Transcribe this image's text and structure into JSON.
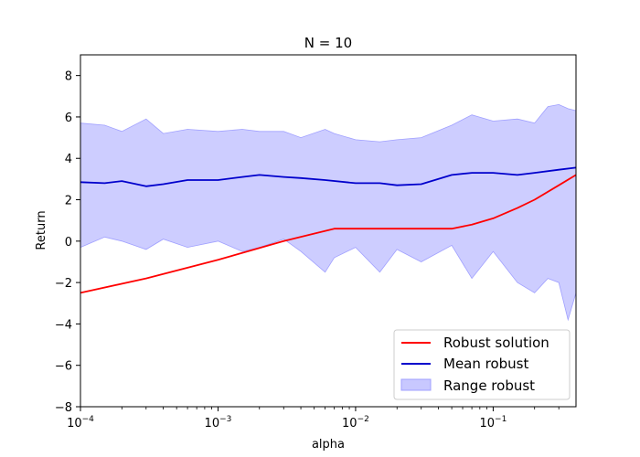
{
  "chart_data": {
    "type": "line",
    "title": "N = 10",
    "xlabel": "alpha",
    "ylabel": "Return",
    "x_scale": "log",
    "xlim": [
      0.0001,
      0.4
    ],
    "ylim": [
      -8,
      9
    ],
    "x_ticks": [
      {
        "value": 0.0001,
        "base": "10",
        "exp": "−4"
      },
      {
        "value": 0.001,
        "base": "10",
        "exp": "−3"
      },
      {
        "value": 0.01,
        "base": "10",
        "exp": "−2"
      },
      {
        "value": 0.1,
        "base": "10",
        "exp": "−1"
      }
    ],
    "y_ticks": [
      -8,
      -6,
      -4,
      -2,
      0,
      2,
      4,
      6,
      8
    ],
    "grid": false,
    "legend_position": "lower-right",
    "colors": {
      "robust_solution": "#ff0000",
      "mean_robust": "#0000cc",
      "range_fill": "#c8c8ff",
      "range_edge": "#a0a0ff"
    },
    "series": [
      {
        "name": "Robust solution",
        "kind": "line",
        "x": [
          0.0001,
          0.0003,
          0.001,
          0.003,
          0.007,
          0.02,
          0.05,
          0.07,
          0.1,
          0.15,
          0.2,
          0.3,
          0.4
        ],
        "y": [
          -2.5,
          -1.8,
          -0.9,
          0.0,
          0.6,
          0.6,
          0.6,
          0.8,
          1.1,
          1.6,
          2.0,
          2.7,
          3.2
        ]
      },
      {
        "name": "Mean robust",
        "kind": "line",
        "x": [
          0.0001,
          0.00015,
          0.0002,
          0.0003,
          0.0004,
          0.0006,
          0.001,
          0.0015,
          0.002,
          0.003,
          0.004,
          0.006,
          0.01,
          0.015,
          0.02,
          0.03,
          0.05,
          0.07,
          0.1,
          0.15,
          0.2,
          0.3,
          0.4
        ],
        "y": [
          2.85,
          2.8,
          2.9,
          2.65,
          2.75,
          2.95,
          2.95,
          3.1,
          3.2,
          3.1,
          3.05,
          2.95,
          2.8,
          2.8,
          2.7,
          2.75,
          3.2,
          3.3,
          3.3,
          3.2,
          3.3,
          3.45,
          3.55
        ]
      },
      {
        "name": "Range robust",
        "kind": "band",
        "x": [
          0.0001,
          0.00015,
          0.0002,
          0.0003,
          0.0004,
          0.0006,
          0.001,
          0.0015,
          0.002,
          0.003,
          0.004,
          0.006,
          0.007,
          0.01,
          0.015,
          0.02,
          0.03,
          0.05,
          0.07,
          0.1,
          0.15,
          0.2,
          0.25,
          0.3,
          0.35,
          0.4
        ],
        "upper": [
          5.7,
          5.6,
          5.3,
          5.9,
          5.2,
          5.4,
          5.3,
          5.4,
          5.3,
          5.3,
          5.0,
          5.4,
          5.2,
          4.9,
          4.8,
          4.9,
          5.0,
          5.6,
          6.1,
          5.8,
          5.9,
          5.7,
          6.5,
          6.6,
          6.4,
          6.3
        ],
        "lower": [
          -0.3,
          0.2,
          0.0,
          -0.4,
          0.1,
          -0.3,
          0.0,
          -0.5,
          -0.3,
          0.1,
          -0.5,
          -1.5,
          -0.8,
          -0.3,
          -1.5,
          -0.4,
          -1.0,
          -0.2,
          -1.8,
          -0.5,
          -2.0,
          -2.5,
          -1.8,
          -2.0,
          -3.8,
          -2.5
        ]
      }
    ]
  }
}
